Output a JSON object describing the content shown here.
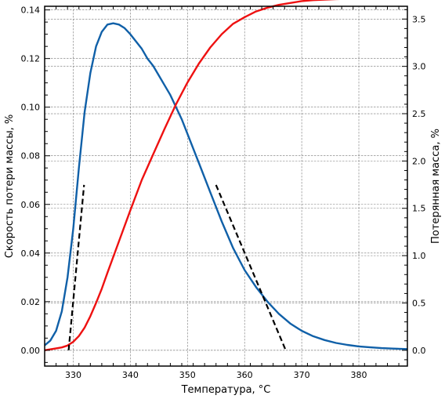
{
  "chart_data": {
    "type": "line",
    "xlabel": "Температура, °C",
    "ylabel_left": "Скорость потери массы, %",
    "ylabel_right": "Потерянная масса, %",
    "xlim": [
      325,
      388.5
    ],
    "ylim_left": [
      -0.0065,
      0.1415
    ],
    "ylim_right": [
      -0.167,
      3.635
    ],
    "x_ticks": [
      330,
      340,
      350,
      360,
      370,
      380
    ],
    "x_tick_labels": [
      "330",
      "340",
      "350",
      "360",
      "370",
      "380"
    ],
    "y_left_ticks": [
      0.0,
      0.02,
      0.04,
      0.06,
      0.08,
      0.1,
      0.12,
      0.14
    ],
    "y_left_tick_labels": [
      "0.00",
      "0.02",
      "0.04",
      "0.06",
      "0.08",
      "0.10",
      "0.12",
      "0.14"
    ],
    "y_right_ticks": [
      0.0,
      0.5,
      1.0,
      1.5,
      2.0,
      2.5,
      3.0,
      3.5
    ],
    "y_right_tick_labels": [
      "0.0",
      "0.5",
      "1.0",
      "1.5",
      "2.0",
      "2.5",
      "3.0",
      "3.5"
    ],
    "grid": true,
    "colors": {
      "rate": "#1060a8",
      "mass": "#ee1111",
      "tangent": "#000000"
    },
    "series": [
      {
        "axis": "left",
        "x": [
          325,
          326,
          327,
          328,
          329,
          330,
          331,
          332,
          333,
          334,
          335,
          336,
          337,
          338,
          339,
          340,
          341,
          342,
          343,
          344,
          345,
          346,
          347,
          348,
          349,
          350,
          352,
          354,
          356,
          358,
          360,
          362,
          364,
          366,
          368,
          370,
          372,
          374,
          376,
          378,
          380,
          382,
          384,
          386,
          388.5
        ],
        "y": [
          0.002,
          0.004,
          0.008,
          0.016,
          0.03,
          0.05,
          0.075,
          0.098,
          0.114,
          0.125,
          0.131,
          0.134,
          0.1345,
          0.134,
          0.1325,
          0.13,
          0.127,
          0.124,
          0.12,
          0.117,
          0.113,
          0.109,
          0.105,
          0.1,
          0.095,
          0.089,
          0.077,
          0.065,
          0.053,
          0.042,
          0.033,
          0.026,
          0.02,
          0.015,
          0.011,
          0.008,
          0.0058,
          0.0042,
          0.003,
          0.0022,
          0.0016,
          0.0012,
          0.0009,
          0.0007,
          0.0005
        ]
      },
      {
        "axis": "right",
        "x": [
          325,
          327,
          328,
          329,
          330,
          331,
          332,
          333,
          334,
          335,
          336,
          338,
          340,
          342,
          344,
          346,
          348,
          350,
          352,
          354,
          356,
          358,
          360,
          362,
          364,
          366,
          368,
          370,
          372,
          374,
          376,
          378,
          380,
          382,
          384,
          386,
          388.5
        ],
        "y": [
          0.0,
          0.02,
          0.03,
          0.05,
          0.09,
          0.15,
          0.24,
          0.36,
          0.5,
          0.65,
          0.82,
          1.15,
          1.48,
          1.8,
          2.07,
          2.34,
          2.6,
          2.83,
          3.03,
          3.2,
          3.34,
          3.45,
          3.52,
          3.58,
          3.62,
          3.65,
          3.67,
          3.69,
          3.7,
          3.705,
          3.71,
          3.713,
          3.715,
          3.717,
          3.718,
          3.719,
          3.72
        ]
      },
      {
        "axis": "left",
        "dashed": true,
        "x": [
          329.2,
          331.9
        ],
        "y": [
          0.0,
          0.068
        ]
      },
      {
        "axis": "left",
        "dashed": true,
        "x": [
          355.0,
          367.2
        ],
        "y": [
          0.068,
          0.0
        ]
      }
    ]
  }
}
